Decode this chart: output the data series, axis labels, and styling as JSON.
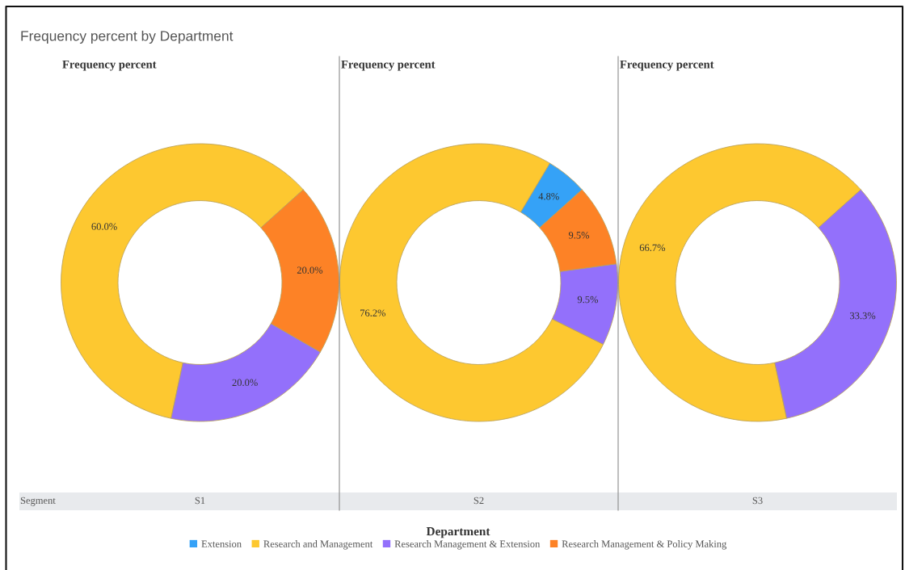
{
  "chart_data": {
    "type": "donut",
    "title": "Frequency percent by Department",
    "subtitle": "Frequency percent",
    "xlabel": "Segment",
    "legend": "bottom",
    "legend_title": "Department",
    "categories": [
      "Extension",
      "Research and Management",
      "Research Management & Extension",
      "Research Management & Policy Making"
    ],
    "colors": [
      "#35a2f7",
      "#fdc830",
      "#9370fb",
      "#fd8226"
    ],
    "series": [
      {
        "name": "S1",
        "values": [
          null,
          60.0,
          20.0,
          20.0
        ],
        "value_labels": [
          null,
          "60.0%",
          "20.0%",
          "20.0%"
        ]
      },
      {
        "name": "S2",
        "values": [
          4.8,
          76.2,
          9.5,
          9.5
        ],
        "value_labels": [
          "4.8%",
          "76.2%",
          "9.5%",
          "9.5%"
        ]
      },
      {
        "name": "S3",
        "values": [
          null,
          66.7,
          33.3,
          null
        ],
        "value_labels": [
          null,
          "66.7%",
          "33.3%",
          null
        ]
      }
    ]
  }
}
